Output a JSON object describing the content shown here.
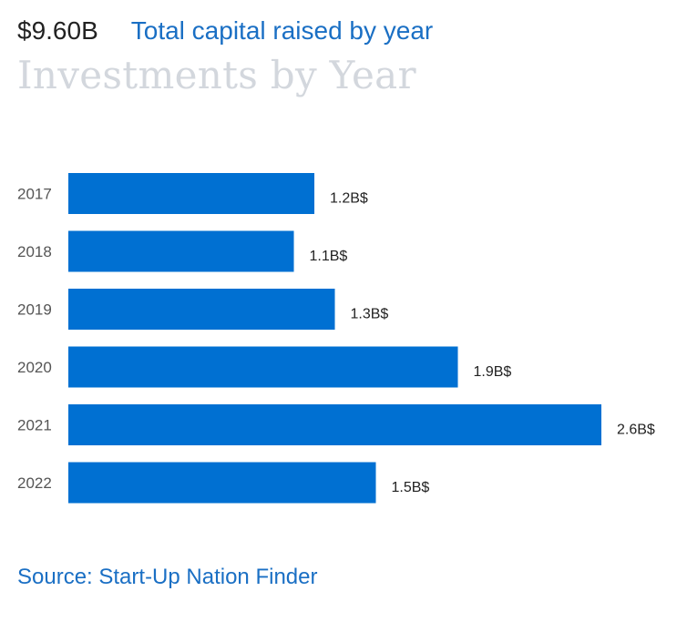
{
  "header": {
    "amount": "$9.60B",
    "subtitle": "Total capital raised by year"
  },
  "title": "Investments by Year",
  "source": "Source: Start-Up Nation Finder",
  "colors": {
    "bar": "#0070d2",
    "accent_text": "#1a6fc4",
    "title_muted": "#d3d7dd"
  },
  "chart_data": {
    "type": "bar",
    "orientation": "horizontal",
    "categories": [
      "2017",
      "2018",
      "2019",
      "2020",
      "2021",
      "2022"
    ],
    "values": [
      1.2,
      1.1,
      1.3,
      1.9,
      2.6,
      1.5
    ],
    "data_labels": [
      "1.2B$",
      "1.1B$",
      "1.3B$",
      "1.9B$",
      "2.6B$",
      "1.5B$"
    ],
    "xlabel": "",
    "ylabel": "",
    "grid": false
  }
}
